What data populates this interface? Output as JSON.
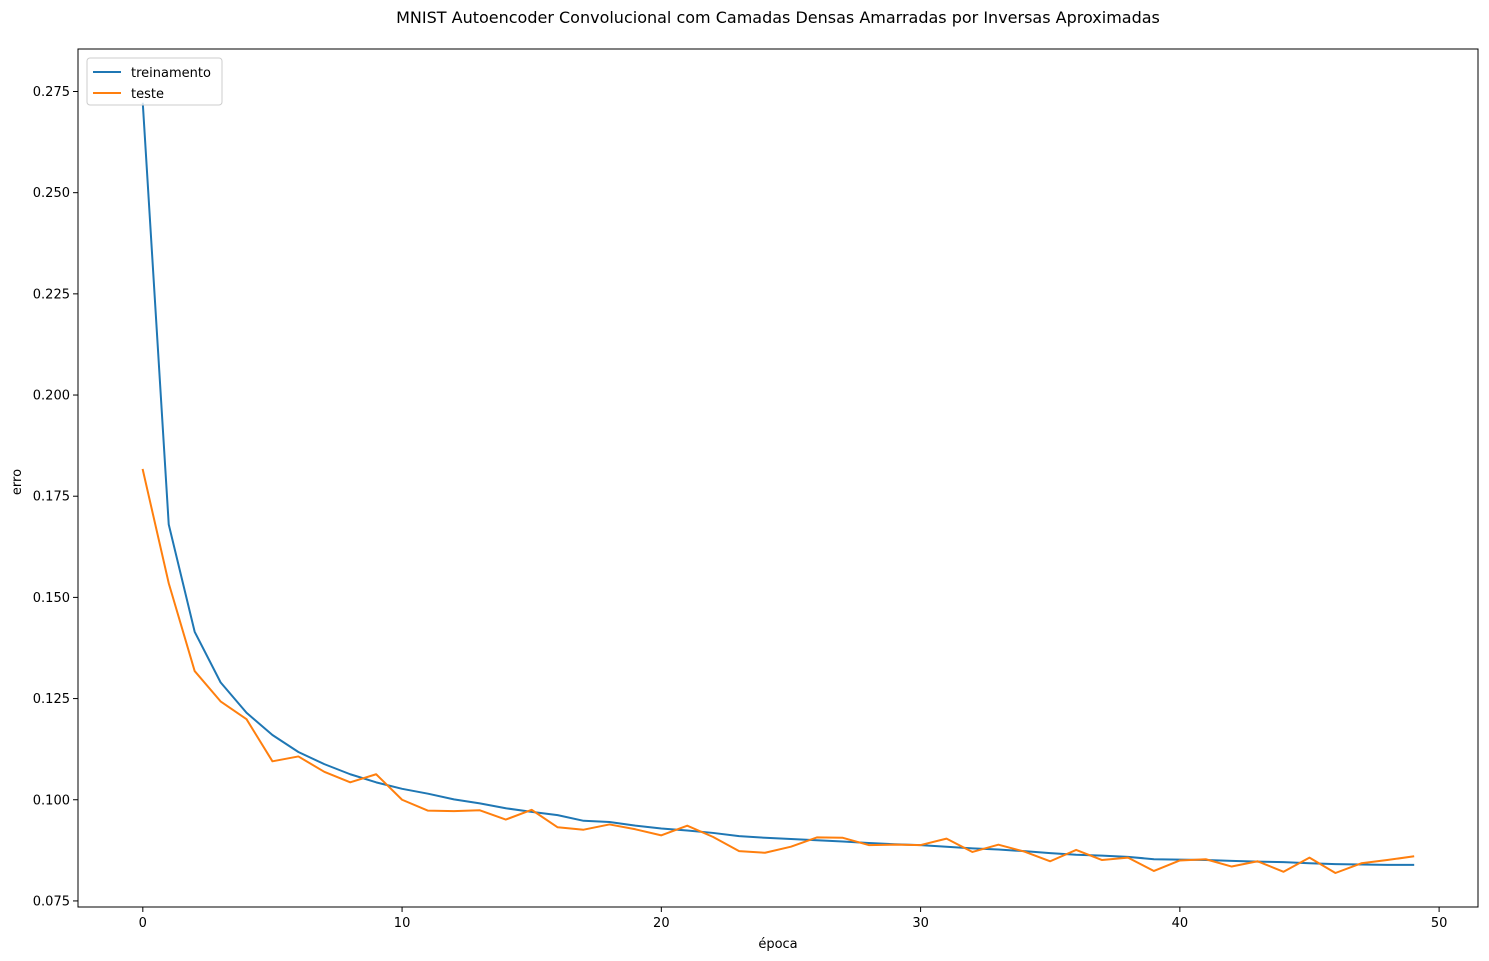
{
  "chart_data": {
    "type": "line",
    "title": "MNIST Autoencoder Convolucional com Camadas Densas Amarradas por Inversas Aproximadas",
    "xlabel": "época",
    "ylabel": "erro",
    "xlim": [
      -2.5,
      51.5
    ],
    "ylim": [
      0.0735,
      0.2855
    ],
    "xticks": [
      0,
      10,
      20,
      30,
      40,
      50
    ],
    "xtick_labels": [
      "0",
      "10",
      "20",
      "30",
      "40",
      "50"
    ],
    "yticks": [
      0.075,
      0.1,
      0.125,
      0.15,
      0.175,
      0.2,
      0.225,
      0.25,
      0.275
    ],
    "ytick_labels": [
      "0.075",
      "0.100",
      "0.125",
      "0.150",
      "0.175",
      "0.200",
      "0.225",
      "0.250",
      "0.275"
    ],
    "grid": false,
    "legend_position": "top-left",
    "x": [
      0,
      1,
      2,
      3,
      4,
      5,
      6,
      7,
      8,
      9,
      10,
      11,
      12,
      13,
      14,
      15,
      16,
      17,
      18,
      19,
      20,
      21,
      22,
      23,
      24,
      25,
      26,
      27,
      28,
      29,
      30,
      31,
      32,
      33,
      34,
      35,
      36,
      37,
      38,
      39,
      40,
      41,
      42,
      43,
      44,
      45,
      46,
      47,
      48,
      49
    ],
    "series": [
      {
        "name": "treinamento",
        "color": "#1f77b4",
        "values": [
          0.272,
          0.168,
          0.1415,
          0.129,
          0.1215,
          0.116,
          0.1118,
          0.1088,
          0.1063,
          0.1043,
          0.1027,
          0.1015,
          0.1001,
          0.0991,
          0.0979,
          0.097,
          0.0962,
          0.0948,
          0.0945,
          0.0936,
          0.0929,
          0.0924,
          0.0918,
          0.091,
          0.0906,
          0.0903,
          0.09,
          0.0897,
          0.0893,
          0.089,
          0.0888,
          0.0884,
          0.088,
          0.0877,
          0.0873,
          0.0868,
          0.0864,
          0.0862,
          0.0859,
          0.0853,
          0.0852,
          0.0851,
          0.0849,
          0.0847,
          0.0846,
          0.0843,
          0.0841,
          0.084,
          0.0839,
          0.0839
        ]
      },
      {
        "name": "teste",
        "color": "#ff7f0e",
        "values": [
          0.1815,
          0.1535,
          0.1318,
          0.1243,
          0.1199,
          0.1095,
          0.1107,
          0.1069,
          0.1043,
          0.1063,
          0.1,
          0.0973,
          0.0972,
          0.0974,
          0.0951,
          0.0975,
          0.0932,
          0.0926,
          0.0939,
          0.0927,
          0.0912,
          0.0936,
          0.0908,
          0.0873,
          0.0869,
          0.0884,
          0.0907,
          0.0906,
          0.0888,
          0.0889,
          0.0888,
          0.0904,
          0.0871,
          0.0889,
          0.0872,
          0.0848,
          0.0876,
          0.0851,
          0.0857,
          0.0824,
          0.085,
          0.0853,
          0.0835,
          0.0848,
          0.0822,
          0.0857,
          0.0819,
          0.0843,
          0.0851,
          0.086
        ]
      }
    ]
  }
}
